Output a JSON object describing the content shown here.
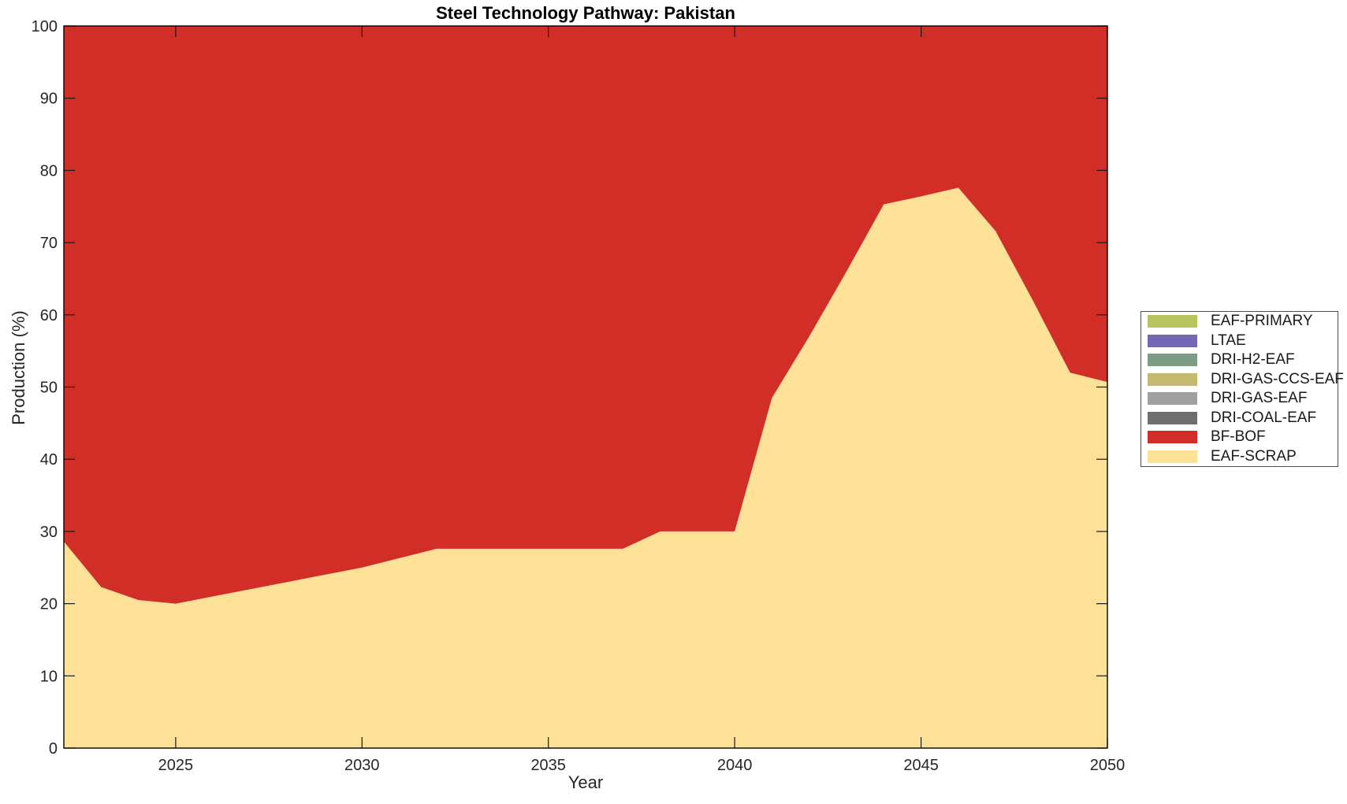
{
  "figure": {
    "title": "Steel Technology Pathway: Pakistan",
    "xlabel": "Year",
    "ylabel": "Production (%)"
  },
  "chart_data": {
    "type": "area",
    "stacked": true,
    "title": "Steel Technology Pathway: Pakistan",
    "xlabel": "Year",
    "ylabel": "Production (%)",
    "grid": false,
    "legend_position": "right-outside",
    "x": [
      2022,
      2023,
      2024,
      2025,
      2026,
      2027,
      2028,
      2029,
      2030,
      2031,
      2032,
      2033,
      2034,
      2035,
      2036,
      2037,
      2038,
      2039,
      2040,
      2041,
      2042,
      2043,
      2044,
      2045,
      2046,
      2047,
      2048,
      2049,
      2050
    ],
    "xlim": [
      2022,
      2050
    ],
    "ylim": [
      0,
      100
    ],
    "xticks": [
      2025,
      2030,
      2035,
      2040,
      2045,
      2050
    ],
    "yticks": [
      0,
      10,
      20,
      30,
      40,
      50,
      60,
      70,
      80,
      90,
      100
    ],
    "legend_labels": [
      "EAF-PRIMARY",
      "LTAE",
      "DRI-H2-EAF",
      "DRI-GAS-CCS-EAF",
      "DRI-GAS-EAF",
      "DRI-COAL-EAF",
      "BF-BOF",
      "EAF-SCRAP"
    ],
    "series": [
      {
        "name": "EAF-SCRAP",
        "color": "#fce197",
        "values": [
          28.6,
          22.3,
          20.5,
          20,
          21,
          22,
          23,
          24,
          25,
          26.3,
          27.6,
          27.6,
          27.6,
          27.6,
          27.6,
          27.6,
          30,
          30,
          30,
          48.5,
          57,
          66,
          75.3,
          76.4,
          77.6,
          71.6,
          62,
          52,
          50.7
        ]
      },
      {
        "name": "BF-BOF",
        "color": "#d02e26",
        "values": [
          71.4,
          77.7,
          79.5,
          80,
          79,
          78,
          77,
          76,
          75,
          73.7,
          72.4,
          72.4,
          72.4,
          72.4,
          72.4,
          72.4,
          70,
          70,
          70,
          51.5,
          43,
          34,
          24.7,
          23.6,
          22.4,
          28.4,
          38,
          48,
          49.3
        ]
      },
      {
        "name": "DRI-COAL-EAF",
        "color": "#6f6e6f",
        "values": [
          0,
          0,
          0,
          0,
          0,
          0,
          0,
          0,
          0,
          0,
          0,
          0,
          0,
          0,
          0,
          0,
          0,
          0,
          0,
          0,
          0,
          0,
          0,
          0,
          0,
          0,
          0,
          0,
          0
        ]
      },
      {
        "name": "DRI-GAS-EAF",
        "color": "#a1a0a1",
        "values": [
          0,
          0,
          0,
          0,
          0,
          0,
          0,
          0,
          0,
          0,
          0,
          0,
          0,
          0,
          0,
          0,
          0,
          0,
          0,
          0,
          0,
          0,
          0,
          0,
          0,
          0,
          0,
          0,
          0
        ]
      },
      {
        "name": "DRI-GAS-CCS-EAF",
        "color": "#c3ba70",
        "values": [
          0,
          0,
          0,
          0,
          0,
          0,
          0,
          0,
          0,
          0,
          0,
          0,
          0,
          0,
          0,
          0,
          0,
          0,
          0,
          0,
          0,
          0,
          0,
          0,
          0,
          0,
          0,
          0,
          0
        ]
      },
      {
        "name": "DRI-H2-EAF",
        "color": "#7b9b82",
        "values": [
          0,
          0,
          0,
          0,
          0,
          0,
          0,
          0,
          0,
          0,
          0,
          0,
          0,
          0,
          0,
          0,
          0,
          0,
          0,
          0,
          0,
          0,
          0,
          0,
          0,
          0,
          0,
          0,
          0
        ]
      },
      {
        "name": "LTAE",
        "color": "#7268b6",
        "values": [
          0,
          0,
          0,
          0,
          0,
          0,
          0,
          0,
          0,
          0,
          0,
          0,
          0,
          0,
          0,
          0,
          0,
          0,
          0,
          0,
          0,
          0,
          0,
          0,
          0,
          0,
          0,
          0,
          0
        ]
      },
      {
        "name": "EAF-PRIMARY",
        "color": "#b7c45f",
        "values": [
          0,
          0,
          0,
          0,
          0,
          0,
          0,
          0,
          0,
          0,
          0,
          0,
          0,
          0,
          0,
          0,
          0,
          0,
          0,
          0,
          0,
          0,
          0,
          0,
          0,
          0,
          0,
          0,
          0
        ]
      }
    ]
  }
}
